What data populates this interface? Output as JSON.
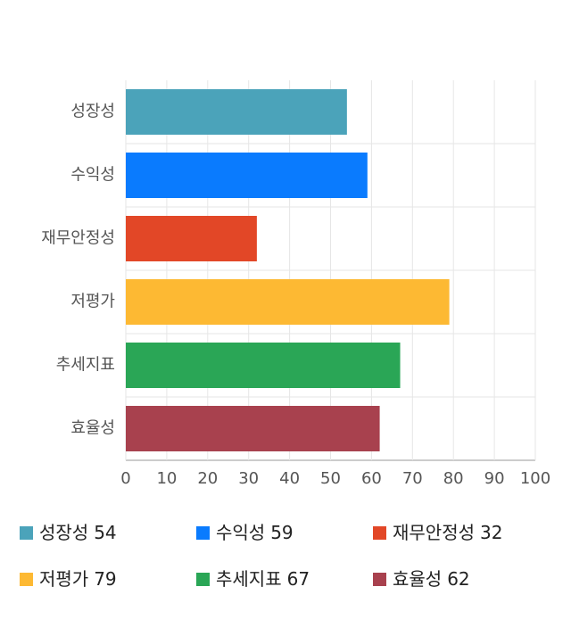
{
  "chart_data": {
    "type": "bar",
    "orientation": "horizontal",
    "categories": [
      "성장성",
      "수익성",
      "재무안정성",
      "저평가",
      "추세지표",
      "효율성"
    ],
    "values": [
      54,
      59,
      32,
      79,
      67,
      62
    ],
    "colors": [
      "#4ba3ba",
      "#0a7bfe",
      "#e24727",
      "#fdb933",
      "#2aa656",
      "#a8414e"
    ],
    "xlim": [
      0,
      100
    ],
    "xticks": [
      0,
      10,
      20,
      30,
      40,
      50,
      60,
      70,
      80,
      90,
      100
    ],
    "grid": true
  }
}
